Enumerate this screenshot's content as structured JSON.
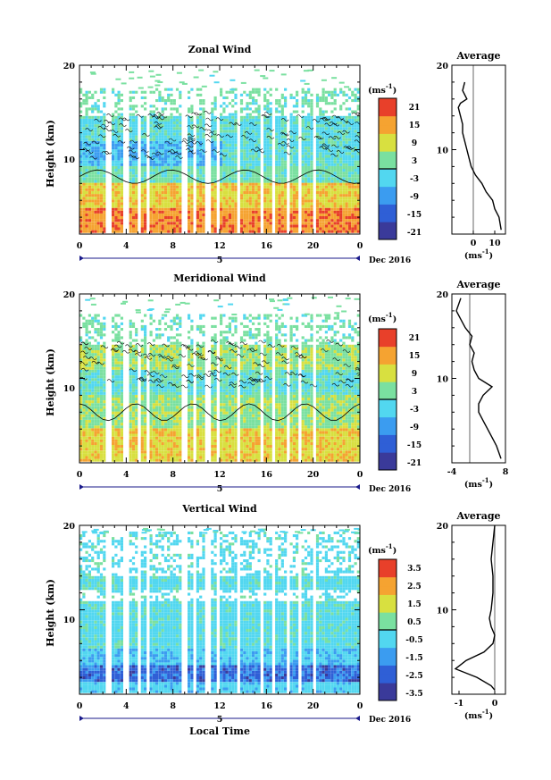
{
  "figure": {
    "xlabel": "Local Time",
    "date_label": "Dec 2016",
    "day_label": "5",
    "x_ticks": [
      "0",
      "4",
      "8",
      "12",
      "16",
      "20",
      "0"
    ],
    "y_label": "Height (km)",
    "y_ticks": [
      "10",
      "20"
    ],
    "unit_label": "(ms",
    "unit_sup": "-1",
    "avg_title": "Average",
    "avg_xlabel": "(ms",
    "avg_xlabel_sup": "-1"
  },
  "chart_data": [
    {
      "type": "heatmap",
      "title": "Zonal Wind",
      "ylabel": "Height (km)",
      "x_range": [
        0,
        24
      ],
      "ylim": [
        0,
        20
      ],
      "colorbar_ticks": [
        "21",
        "15",
        "9",
        "3",
        "-3",
        "-9",
        "-15",
        "-21"
      ],
      "colorbar_range": [
        -24,
        24
      ],
      "colors": [
        "#3a3a9a",
        "#2f5fd6",
        "#3b9cf0",
        "#52d7f0",
        "#7ae0a0",
        "#d8e040",
        "#f5a331",
        "#e8402a"
      ],
      "profile": {
        "title": "Average",
        "x_ticks": [
          "0",
          "10"
        ],
        "xlim": [
          -10,
          15
        ],
        "heights": [
          0.5,
          2,
          3,
          4,
          5,
          6,
          7,
          8,
          9,
          10,
          11,
          12,
          13,
          14,
          15,
          15.5,
          16,
          17,
          18
        ],
        "values": [
          13,
          12,
          10,
          9,
          6,
          4,
          1,
          -1,
          -2,
          -3,
          -4,
          -5,
          -5,
          -6,
          -7,
          -6,
          -3,
          -5,
          -4
        ]
      }
    },
    {
      "type": "heatmap",
      "title": "Meridional Wind",
      "ylabel": "Height (km)",
      "x_range": [
        0,
        24
      ],
      "ylim": [
        0,
        20
      ],
      "colorbar_ticks": [
        "21",
        "15",
        "9",
        "3",
        "-3",
        "-9",
        "-15",
        "-21"
      ],
      "colorbar_range": [
        -24,
        24
      ],
      "colors": [
        "#3a3a9a",
        "#2f5fd6",
        "#3b9cf0",
        "#52d7f0",
        "#7ae0a0",
        "#d8e040",
        "#f5a331",
        "#e8402a"
      ],
      "profile": {
        "title": "Average",
        "x_ticks": [
          "-4",
          "8"
        ],
        "xlim": [
          -4,
          8
        ],
        "heights": [
          0.5,
          2,
          3,
          4,
          5,
          6,
          7,
          8,
          9,
          10,
          11,
          12,
          13,
          14,
          15,
          16,
          17,
          18,
          19.5
        ],
        "values": [
          7,
          6,
          5,
          4,
          3,
          2,
          2,
          3,
          5,
          2,
          1,
          0.5,
          1,
          0,
          0.5,
          -1,
          -2,
          -3,
          -2
        ]
      }
    },
    {
      "type": "heatmap",
      "title": "Vertical Wind",
      "ylabel": "Height (km)",
      "x_range": [
        0,
        24
      ],
      "ylim": [
        0,
        20
      ],
      "colorbar_ticks": [
        "3.5",
        "2.5",
        "1.5",
        "0.5",
        "-0.5",
        "-1.5",
        "-2.5",
        "-3.5"
      ],
      "colorbar_range": [
        -4,
        4
      ],
      "colors": [
        "#3a3a9a",
        "#2f5fd6",
        "#3b9cf0",
        "#52d7f0",
        "#7ae0a0",
        "#d8e040",
        "#f5a331",
        "#e8402a"
      ],
      "profile": {
        "title": "Average",
        "x_ticks": [
          "-1",
          "0"
        ],
        "xlim": [
          -1.2,
          0.3
        ],
        "heights": [
          0.5,
          1,
          2,
          3,
          4,
          5,
          6,
          7,
          8,
          9,
          10,
          12,
          14,
          16,
          18,
          20
        ],
        "values": [
          0,
          -0.1,
          -0.5,
          -1.1,
          -0.8,
          -0.3,
          -0.05,
          0,
          -0.1,
          -0.15,
          -0.1,
          -0.05,
          -0.05,
          -0.1,
          -0.05,
          0
        ]
      }
    }
  ]
}
